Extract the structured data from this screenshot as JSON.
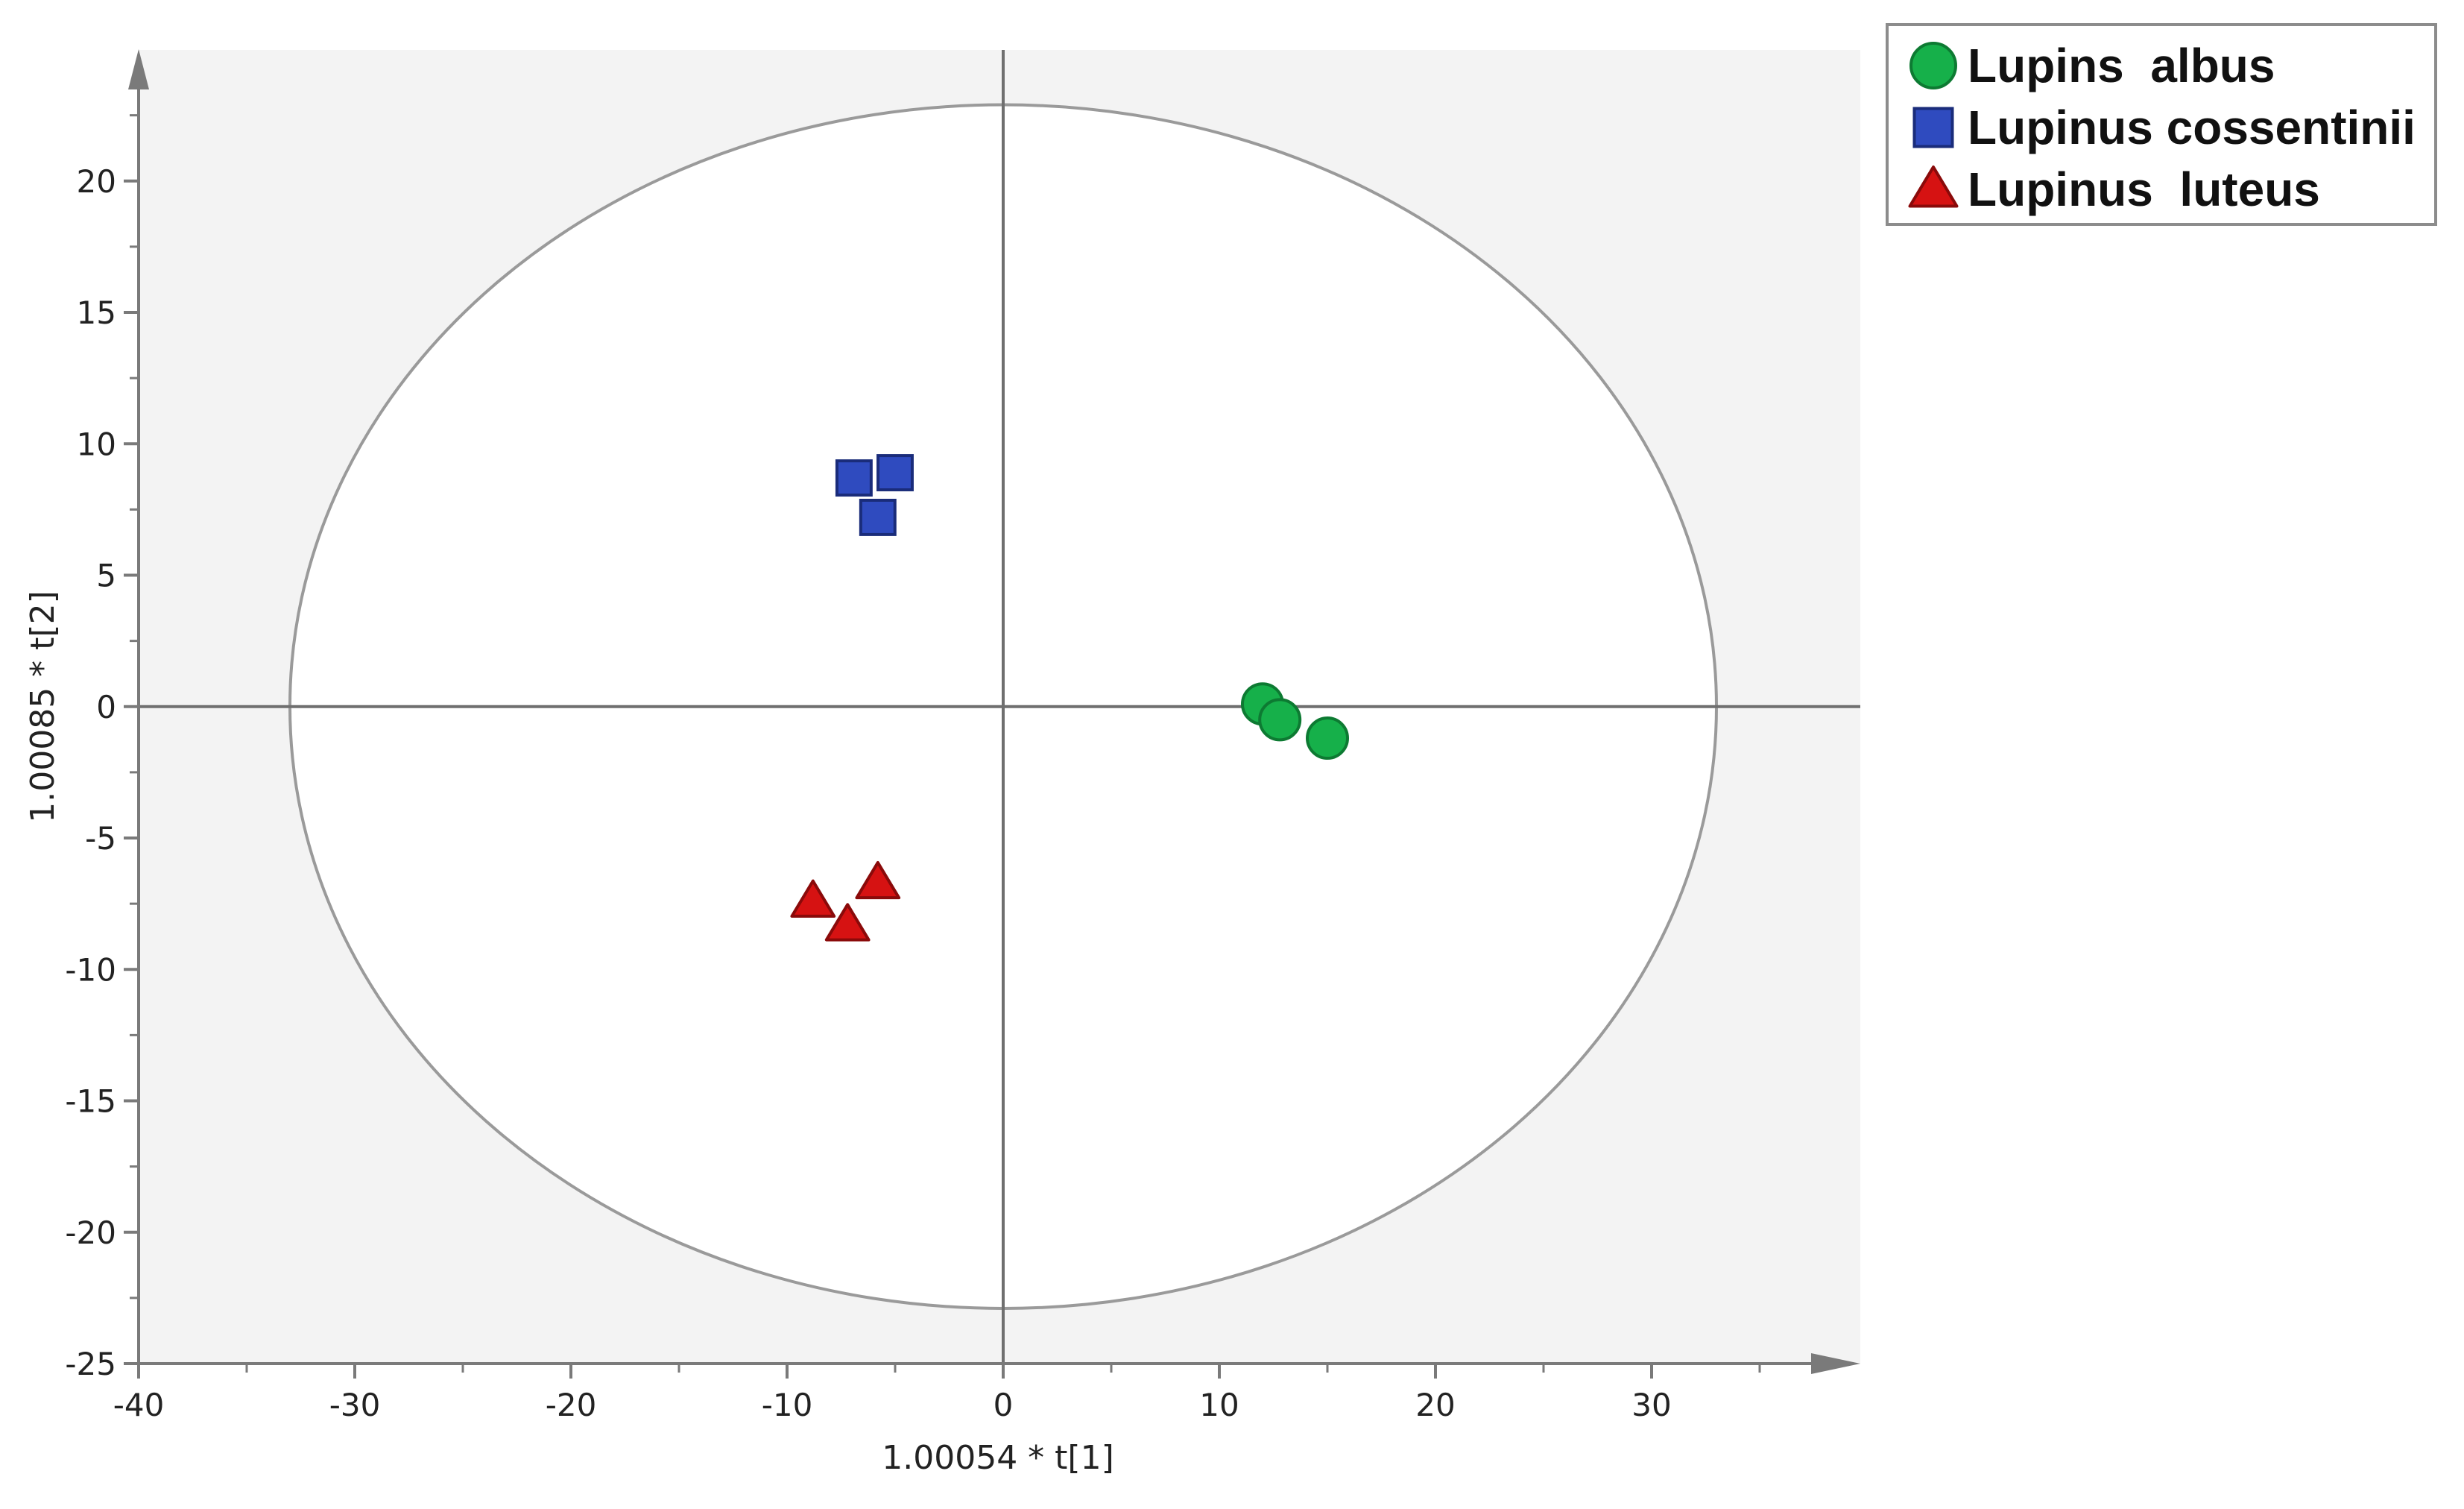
{
  "chart_data": {
    "type": "scatter",
    "title": "",
    "xlabel": "1.00054 * t[1]",
    "ylabel": "1.00085 * t[2]",
    "xlim": [
      -40,
      40
    ],
    "ylim": [
      -25,
      25
    ],
    "xticks": [
      -40,
      -30,
      -20,
      -10,
      0,
      10,
      20,
      30
    ],
    "yticks": [
      20,
      15,
      10,
      5,
      0,
      -5,
      -10,
      -15,
      -20,
      -25
    ],
    "x_tick_labels": [
      "-40",
      "-30",
      "-20",
      "-10",
      "0",
      "10",
      "20",
      "30"
    ],
    "y_tick_labels": [
      "20",
      "15",
      "10",
      "5",
      "0",
      "-5",
      "-10",
      "-15",
      "-20",
      "-25"
    ],
    "ellipse": {
      "center": [
        0,
        0
      ],
      "rx": 33,
      "ry": 22.9,
      "color": "#9a9a9a"
    },
    "legend_position": "top-right",
    "grid": false,
    "series": [
      {
        "name": "Lupins  albus",
        "marker": "circle",
        "color": "#16b04a",
        "edge_color": "#0d7a32",
        "points": [
          [
            12.0,
            0.1
          ],
          [
            12.8,
            -0.5
          ],
          [
            15.0,
            -1.2
          ]
        ]
      },
      {
        "name": "Lupinus cossentinii",
        "marker": "square",
        "color": "#2f4bbf",
        "edge_color": "#1a2c7a",
        "points": [
          [
            -6.9,
            8.7
          ],
          [
            -5.0,
            8.9
          ],
          [
            -5.8,
            7.2
          ]
        ]
      },
      {
        "name": "Lupinus  luteus",
        "marker": "triangle",
        "color": "#d61212",
        "edge_color": "#8a0a0a",
        "points": [
          [
            -8.8,
            -7.4
          ],
          [
            -5.8,
            -6.7
          ],
          [
            -7.2,
            -8.3
          ]
        ]
      }
    ]
  }
}
